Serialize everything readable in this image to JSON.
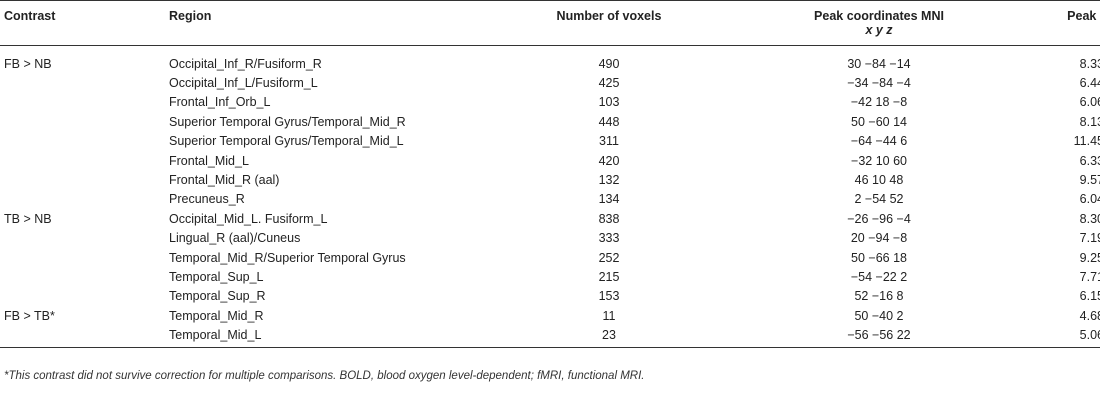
{
  "table": {
    "headers": {
      "contrast": "Contrast",
      "region": "Region",
      "voxels": "Number of voxels",
      "peak": "Peak coordinates MNI",
      "peak_sub": "x y z",
      "t": "Peak t"
    },
    "rows": [
      {
        "contrast": "FB > NB",
        "region": "Occipital_Inf_R/Fusiform_R",
        "voxels": "490",
        "peak": "30 −84 −14",
        "t": "8.33"
      },
      {
        "contrast": "",
        "region": "Occipital_Inf_L/Fusiform_L",
        "voxels": "425",
        "peak": "−34 −84 −4",
        "t": "6.44"
      },
      {
        "contrast": "",
        "region": "Frontal_Inf_Orb_L",
        "voxels": "103",
        "peak": "−42 18 −8",
        "t": "6.06"
      },
      {
        "contrast": "",
        "region": "Superior Temporal Gyrus/Temporal_Mid_R",
        "voxels": "448",
        "peak": "50 −60 14",
        "t": "8.13"
      },
      {
        "contrast": "",
        "region": "Superior Temporal Gyrus/Temporal_Mid_L",
        "voxels": "311",
        "peak": "−64 −44 6",
        "t": "11.45"
      },
      {
        "contrast": "",
        "region": "Frontal_Mid_L",
        "voxels": "420",
        "peak": "−32 10 60",
        "t": "6.33"
      },
      {
        "contrast": "",
        "region": "Frontal_Mid_R (aal)",
        "voxels": "132",
        "peak": "46 10 48",
        "t": "9.57"
      },
      {
        "contrast": "",
        "region": "Precuneus_R",
        "voxels": "134",
        "peak": "2 −54 52",
        "t": "6.04"
      },
      {
        "contrast": "TB > NB",
        "region": "Occipital_Mid_L. Fusiform_L",
        "voxels": "838",
        "peak": "−26 −96 −4",
        "t": "8.30"
      },
      {
        "contrast": "",
        "region": "Lingual_R (aal)/Cuneus",
        "voxels": "333",
        "peak": "20 −94 −8",
        "t": "7.19"
      },
      {
        "contrast": "",
        "region": "Temporal_Mid_R/Superior Temporal Gyrus",
        "voxels": "252",
        "peak": "50 −66 18",
        "t": "9.25"
      },
      {
        "contrast": "",
        "region": "Temporal_Sup_L",
        "voxels": "215",
        "peak": "−54 −22 2",
        "t": "7.71"
      },
      {
        "contrast": "",
        "region": "Temporal_Sup_R",
        "voxels": "153",
        "peak": "52 −16 8",
        "t": "6.15"
      },
      {
        "contrast": "FB > TB*",
        "region": "Temporal_Mid_R",
        "voxels": "11",
        "peak": "50 −40 2",
        "t": "4.68"
      },
      {
        "contrast": "",
        "region": "Temporal_Mid_L",
        "voxels": "23",
        "peak": "−56 −56 22",
        "t": "5.06"
      }
    ]
  },
  "footnote": "*This contrast did not survive correction for multiple comparisons. BOLD, blood oxygen level-dependent; fMRI, functional MRI."
}
